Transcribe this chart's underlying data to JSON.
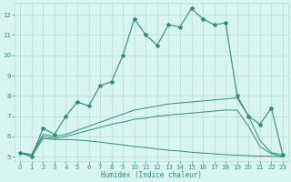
{
  "xlabel": "Humidex (Indice chaleur)",
  "x": [
    0,
    1,
    2,
    3,
    4,
    5,
    6,
    7,
    8,
    9,
    10,
    11,
    12,
    13,
    14,
    15,
    16,
    17,
    18,
    19,
    20,
    21,
    22,
    23
  ],
  "main_y": [
    5.2,
    5.0,
    6.4,
    6.1,
    7.0,
    7.7,
    7.5,
    8.5,
    8.7,
    10.0,
    11.8,
    11.0,
    10.5,
    11.5,
    11.4,
    12.3,
    11.8,
    11.5,
    11.6,
    8.0,
    7.0,
    6.6,
    7.4,
    5.1
  ],
  "line_upper_y": [
    5.2,
    5.1,
    6.1,
    6.0,
    6.1,
    6.3,
    6.5,
    6.7,
    6.9,
    7.1,
    7.3,
    7.4,
    7.5,
    7.6,
    7.65,
    7.7,
    7.75,
    7.8,
    7.85,
    7.9,
    7.0,
    5.8,
    5.2,
    5.1
  ],
  "line_mid_y": [
    5.2,
    5.1,
    6.0,
    5.9,
    6.0,
    6.15,
    6.3,
    6.45,
    6.6,
    6.7,
    6.85,
    6.9,
    7.0,
    7.05,
    7.1,
    7.15,
    7.2,
    7.25,
    7.3,
    7.3,
    6.5,
    5.5,
    5.15,
    5.0
  ],
  "line_lower_y": [
    5.2,
    5.0,
    5.9,
    5.85,
    5.85,
    5.82,
    5.78,
    5.72,
    5.65,
    5.58,
    5.5,
    5.45,
    5.38,
    5.32,
    5.28,
    5.22,
    5.18,
    5.14,
    5.1,
    5.08,
    5.05,
    5.03,
    5.02,
    5.0
  ],
  "color": "#2e8b7a",
  "bg_color": "#d8f5f0",
  "grid_color": "#b8ddd8",
  "ylim": [
    4.8,
    12.6
  ],
  "xlim": [
    -0.5,
    23.5
  ],
  "yticks": [
    5,
    6,
    7,
    8,
    9,
    10,
    11,
    12
  ],
  "xticks": [
    0,
    1,
    2,
    3,
    4,
    5,
    6,
    7,
    8,
    9,
    10,
    11,
    12,
    13,
    14,
    15,
    16,
    17,
    18,
    19,
    20,
    21,
    22,
    23
  ]
}
